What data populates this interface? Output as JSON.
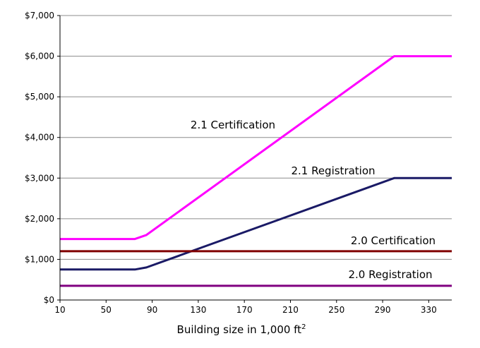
{
  "chart_data": {
    "type": "line",
    "title": "",
    "xlabel": "Building size in 1,000 ft",
    "xlabel_superscript": "2",
    "ylabel": "",
    "xlim": [
      10,
      350
    ],
    "ylim": [
      0,
      7000
    ],
    "xticks": [
      10,
      50,
      90,
      130,
      170,
      210,
      250,
      290,
      330
    ],
    "yticks": [
      0,
      1000,
      2000,
      3000,
      4000,
      5000,
      6000,
      7000
    ],
    "ytick_labels": [
      "$0",
      "$1,000",
      "$2,000",
      "$3,000",
      "$4,000",
      "$5,000",
      "$6,000",
      "$7,000"
    ],
    "grid": "horizontal",
    "legend": "none",
    "series": [
      {
        "name": "2.1 Certification",
        "color": "#ff00ff",
        "points": [
          [
            10,
            1500
          ],
          [
            75,
            1500
          ],
          [
            85,
            1600
          ],
          [
            300,
            6000
          ],
          [
            350,
            6000
          ]
        ]
      },
      {
        "name": "2.1 Registration",
        "color": "#1a1a66",
        "points": [
          [
            10,
            750
          ],
          [
            75,
            750
          ],
          [
            85,
            800
          ],
          [
            300,
            3000
          ],
          [
            350,
            3000
          ]
        ]
      },
      {
        "name": "2.0 Certification",
        "color": "#800000",
        "points": [
          [
            10,
            1200
          ],
          [
            350,
            1200
          ]
        ]
      },
      {
        "name": "2.0 Registration",
        "color": "#800080",
        "points": [
          [
            10,
            350
          ],
          [
            350,
            350
          ]
        ]
      }
    ]
  }
}
